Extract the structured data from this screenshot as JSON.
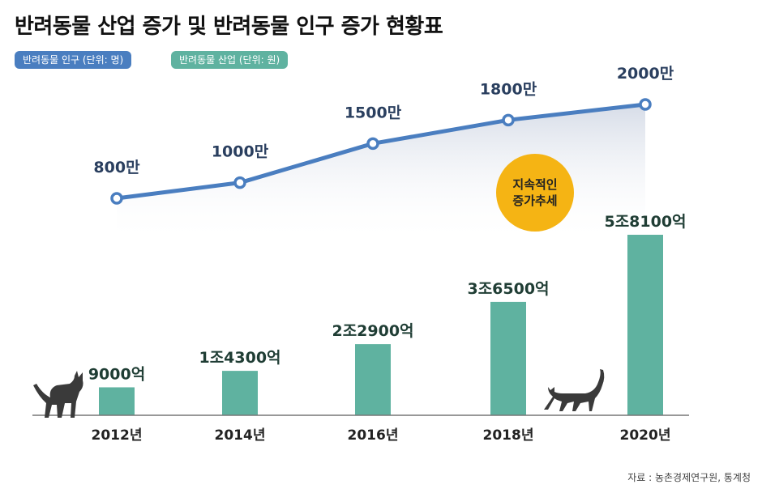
{
  "title": "반려동물 산업 증가 및 반려동물 인구 증가 현황표",
  "legend": {
    "population": "반려동물 인구 (단위: 명)",
    "industry": "반려동물 산업 (단위: 원)"
  },
  "badge": {
    "line1": "지속적인",
    "line2": "증가추세"
  },
  "source": "자료 : 농촌경제연구원, 통계청",
  "colors": {
    "line": "#4a7ec0",
    "bar": "#5fb2a0",
    "badge": "#f5b414",
    "line_label": "#2a3f5f",
    "bar_label": "#1f3d34"
  },
  "chart_data": {
    "type": "bar",
    "categories": [
      "2012년",
      "2014년",
      "2016년",
      "2018년",
      "2020년"
    ],
    "series": [
      {
        "chart": "line",
        "values": [
          800,
          1000,
          1500,
          1800,
          2000
        ],
        "labels": [
          "800만",
          "1000만",
          "1500만",
          "1800만",
          "2000만"
        ]
      },
      {
        "chart": "bar",
        "values": [
          9000,
          14300,
          22900,
          36500,
          58100
        ],
        "labels": [
          "9000억",
          "1조4300억",
          "2조2900억",
          "3조6500억",
          "5조8100억"
        ]
      }
    ]
  }
}
